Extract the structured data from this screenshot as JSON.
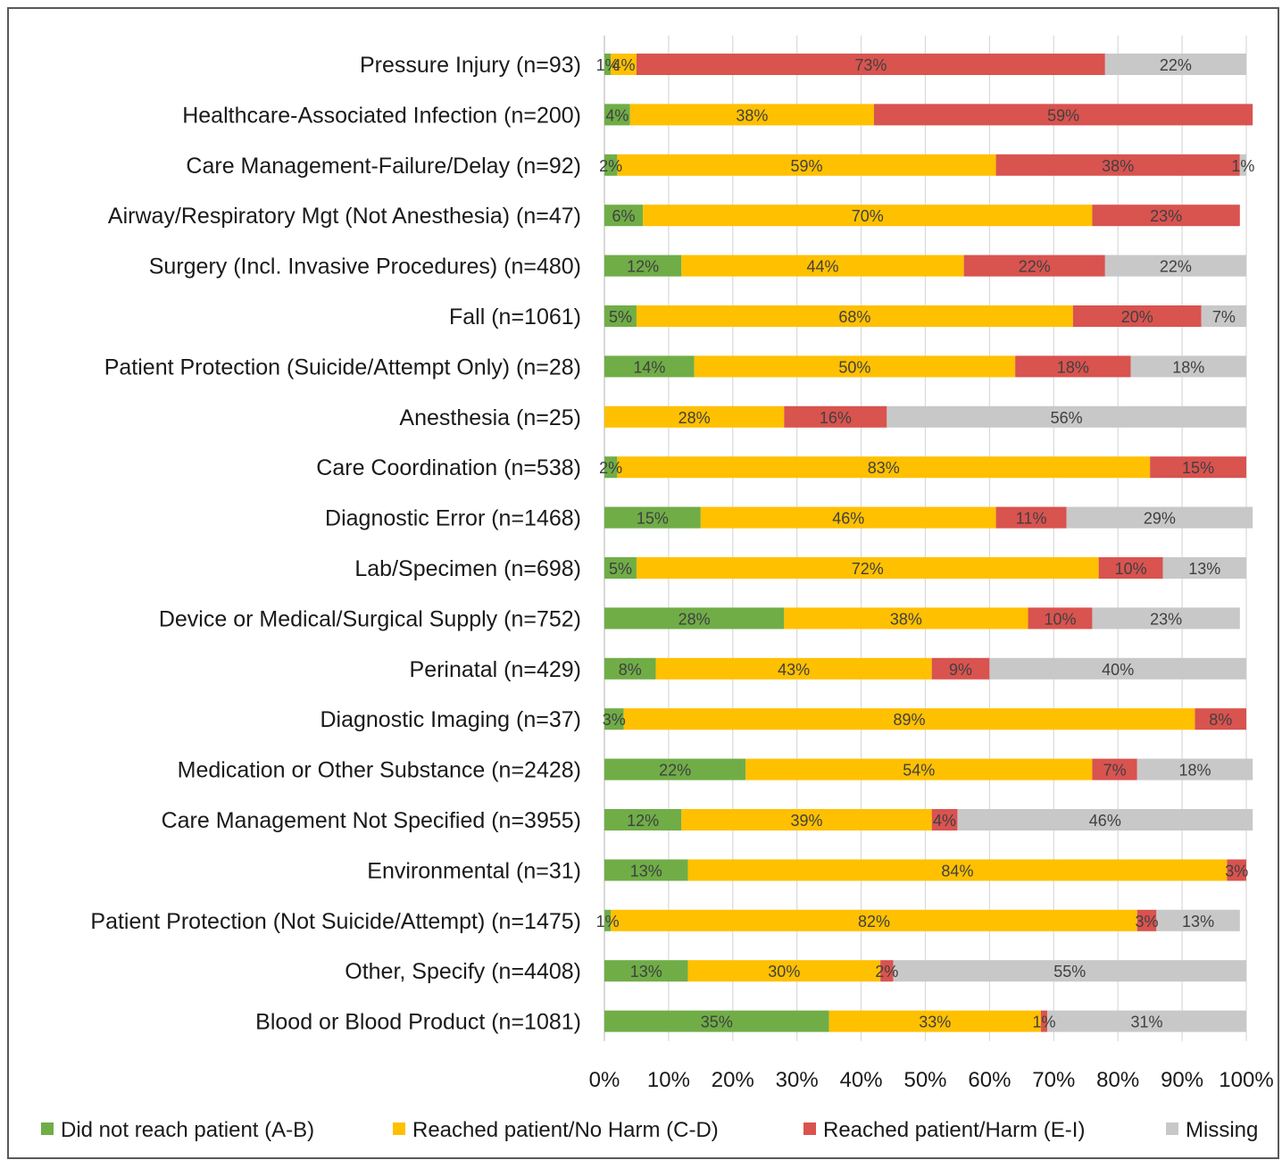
{
  "chart_data": {
    "type": "bar",
    "orientation": "horizontal",
    "stacked": true,
    "percent_stacked": true,
    "categories": [
      "Pressure Injury (n=93)",
      "Healthcare-Associated Infection (n=200)",
      "Care Management-Failure/Delay (n=92)",
      "Airway/Respiratory Mgt (Not Anesthesia) (n=47)",
      "Surgery (Incl. Invasive Procedures) (n=480)",
      "Fall (n=1061)",
      "Patient Protection (Suicide/Attempt Only) (n=28)",
      "Anesthesia (n=25)",
      "Care Coordination (n=538)",
      "Diagnostic Error (n=1468)",
      "Lab/Specimen (n=698)",
      "Device or Medical/Surgical Supply (n=752)",
      "Perinatal  (n=429)",
      "Diagnostic Imaging (n=37)",
      "Medication or Other Substance (n=2428)",
      "Care Management Not Specified (n=3955)",
      "Environmental (n=31)",
      "Patient Protection (Not Suicide/Attempt) (n=1475)",
      "Other, Specify (n=4408)",
      "Blood or Blood Product (n=1081)"
    ],
    "series": [
      {
        "name": "Did not reach patient (A-B)",
        "color": "#70AD47",
        "values": [
          1,
          4,
          2,
          6,
          12,
          5,
          14,
          0,
          2,
          15,
          5,
          28,
          8,
          3,
          22,
          12,
          13,
          1,
          13,
          35
        ],
        "labels": [
          "1%",
          "4%",
          "2%",
          "6%",
          "12%",
          "5%",
          "14%",
          "",
          "2%",
          "15%",
          "5%",
          "28%",
          "8%",
          "3%",
          "22%",
          "12%",
          "13%",
          "1%",
          "13%",
          "35%"
        ]
      },
      {
        "name": "Reached patient/No Harm (C-D)",
        "color": "#FFC000",
        "values": [
          4,
          38,
          59,
          70,
          44,
          68,
          50,
          28,
          83,
          46,
          72,
          38,
          43,
          89,
          54,
          39,
          84,
          82,
          30,
          33
        ],
        "labels": [
          "4%",
          "38%",
          "59%",
          "70%",
          "44%",
          "68%",
          "50%",
          "28%",
          "83%",
          "46%",
          "72%",
          "38%",
          "43%",
          "89%",
          "54%",
          "39%",
          "84%",
          "82%",
          "30%",
          "33%"
        ]
      },
      {
        "name": "Reached patient/Harm (E-I)",
        "color": "#D9534F",
        "values": [
          73,
          59,
          38,
          23,
          22,
          20,
          18,
          16,
          15,
          11,
          10,
          10,
          9,
          8,
          7,
          4,
          3,
          3,
          2,
          1
        ],
        "labels": [
          "73%",
          "59%",
          "38%",
          "23%",
          "22%",
          "20%",
          "18%",
          "16%",
          "15%",
          "11%",
          "10%",
          "10%",
          "9%",
          "8%",
          "7%",
          "4%",
          "3%",
          "3%",
          "2%",
          "1%"
        ]
      },
      {
        "name": "Missing",
        "color": "#C8C8C8",
        "values": [
          22,
          0,
          1,
          0,
          22,
          7,
          18,
          56,
          0,
          29,
          13,
          23,
          40,
          0,
          18,
          46,
          0,
          13,
          55,
          31
        ],
        "labels": [
          "22%",
          "",
          "1%",
          "",
          "22%",
          "7%",
          "18%",
          "56%",
          "",
          "29%",
          "13%",
          "23%",
          "40%",
          "",
          "18%",
          "46%",
          "",
          "13%",
          "55%",
          "31%"
        ]
      }
    ],
    "x_ticks": [
      "0%",
      "10%",
      "20%",
      "30%",
      "40%",
      "50%",
      "60%",
      "70%",
      "80%",
      "90%",
      "100%"
    ],
    "xlim": [
      0,
      100
    ],
    "grid": true,
    "legend_position": "bottom"
  }
}
